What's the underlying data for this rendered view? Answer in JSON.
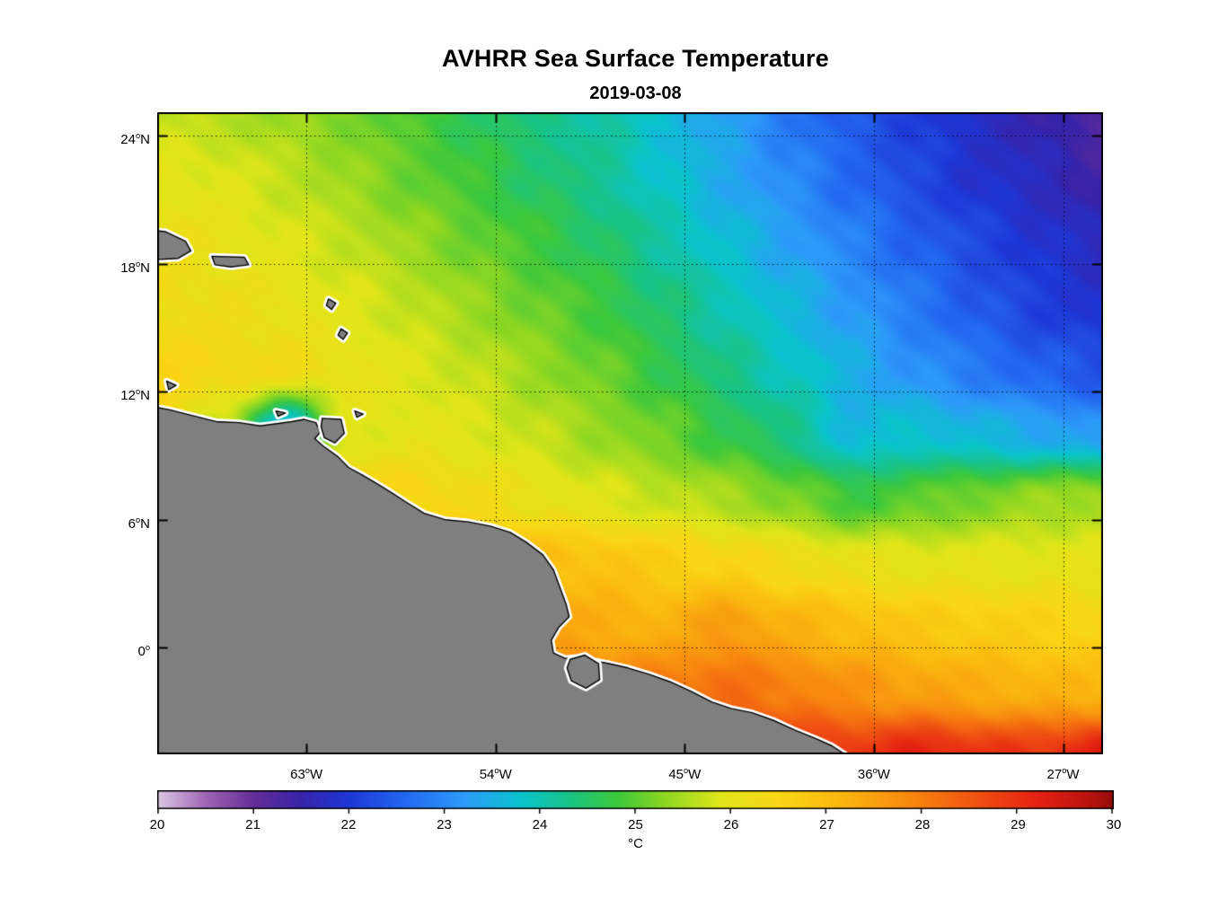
{
  "title": "AVHRR Sea Surface Temperature",
  "subtitle": "2019-03-08",
  "colorbar": {
    "unit_label": "°C",
    "min": 20,
    "max": 30,
    "tick_labels": [
      "20",
      "21",
      "22",
      "23",
      "24",
      "25",
      "26",
      "27",
      "28",
      "29",
      "30"
    ]
  },
  "axes": {
    "degree_superscript": "o",
    "lat_tick_labels": [
      {
        "deg": "24",
        "hem": "N",
        "value": 24
      },
      {
        "deg": "18",
        "hem": "N",
        "value": 18
      },
      {
        "deg": "12",
        "hem": "N",
        "value": 12
      },
      {
        "deg": "6",
        "hem": "N",
        "value": 6
      },
      {
        "deg": "0",
        "hem": "",
        "value": 0
      }
    ],
    "lon_tick_labels": [
      {
        "deg": "63",
        "hem": "W",
        "value": -63
      },
      {
        "deg": "54",
        "hem": "W",
        "value": -54
      },
      {
        "deg": "45",
        "hem": "W",
        "value": -45
      },
      {
        "deg": "36",
        "hem": "W",
        "value": -36
      },
      {
        "deg": "27",
        "hem": "W",
        "value": -27
      }
    ]
  },
  "chart_data": {
    "type": "heatmap",
    "title": "AVHRR Sea Surface Temperature",
    "date": "2019-03-08",
    "units": "°C",
    "value_range": [
      20,
      30
    ],
    "lon_range": [
      -70.1,
      -25.1
    ],
    "lat_range": [
      -5.0,
      25.1
    ],
    "grid_on": true,
    "grid_lines": {
      "lats": [
        24,
        18,
        12,
        6,
        0
      ],
      "lons": [
        -63,
        -54,
        -45,
        -36,
        -27
      ],
      "style": "dotted"
    },
    "grid_lons": [
      -70,
      -67,
      -64,
      -61,
      -58,
      -55,
      -52,
      -49,
      -46,
      -43,
      -40,
      -37,
      -34,
      -31,
      -28,
      -25
    ],
    "grid_lats": [
      25,
      22,
      19,
      16,
      13,
      10,
      7,
      4,
      1,
      -2,
      -5
    ],
    "sst": [
      [
        25.7,
        25.6,
        25.4,
        25.2,
        24.9,
        24.6,
        24.3,
        24.1,
        23.7,
        23.3,
        22.8,
        22.4,
        22.1,
        21.8,
        21.5,
        21.2
      ],
      [
        26.0,
        25.9,
        25.7,
        25.4,
        25.1,
        24.8,
        24.5,
        24.2,
        23.8,
        23.4,
        23.0,
        22.6,
        22.2,
        21.9,
        21.7,
        21.4
      ],
      [
        26.2,
        26.1,
        25.9,
        25.7,
        25.4,
        25.1,
        24.8,
        24.5,
        24.1,
        23.7,
        23.3,
        22.9,
        22.5,
        22.2,
        21.9,
        21.7
      ],
      [
        26.3,
        26.2,
        26.1,
        25.9,
        25.7,
        25.4,
        25.1,
        24.8,
        24.4,
        24.0,
        23.6,
        23.2,
        22.8,
        22.4,
        22.1,
        21.9
      ],
      [
        26.5,
        26.4,
        26.3,
        26.1,
        25.9,
        25.7,
        25.4,
        25.1,
        24.7,
        24.3,
        23.9,
        23.5,
        23.1,
        22.8,
        22.5,
        22.3
      ],
      [
        26.5,
        25.6,
        23.3,
        25.9,
        26.0,
        25.9,
        25.7,
        25.4,
        25.1,
        24.7,
        24.3,
        23.6,
        23.8,
        23.6,
        23.4,
        23.2
      ],
      [
        26.8,
        26.8,
        26.8,
        26.7,
        26.5,
        26.3,
        26.1,
        25.9,
        25.7,
        25.5,
        25.2,
        24.8,
        25.0,
        25.2,
        25.4,
        25.5
      ],
      [
        27.2,
        27.2,
        27.2,
        27.2,
        27.1,
        27.0,
        27.0,
        26.9,
        26.7,
        26.5,
        26.3,
        26.1,
        26.0,
        26.0,
        26.0,
        26.0
      ],
      [
        27.5,
        27.5,
        27.5,
        27.5,
        27.5,
        27.4,
        27.4,
        27.3,
        27.2,
        27.6,
        27.2,
        27.0,
        26.8,
        26.7,
        26.6,
        26.5
      ],
      [
        28.0,
        28.0,
        28.0,
        28.0,
        28.0,
        28.0,
        28.0,
        28.0,
        28.1,
        28.2,
        28.0,
        27.7,
        27.5,
        27.3,
        27.2,
        27.1
      ],
      [
        29.0,
        29.0,
        29.0,
        29.0,
        29.0,
        29.0,
        29.0,
        29.0,
        29.0,
        29.0,
        29.0,
        28.9,
        29.2,
        29.0,
        28.9,
        29.4
      ]
    ],
    "land_color": "#7f7f7f",
    "coast_halo_color": "#ffffff",
    "coast_line_color": "#000000",
    "colormap_stops": [
      [
        20.0,
        [
          218,
          198,
          228
        ]
      ],
      [
        20.5,
        [
          160,
          100,
          180
        ]
      ],
      [
        21.0,
        [
          100,
          45,
          150
        ]
      ],
      [
        21.5,
        [
          55,
          35,
          170
        ]
      ],
      [
        22.0,
        [
          30,
          55,
          215
        ]
      ],
      [
        22.6,
        [
          35,
          105,
          240
        ]
      ],
      [
        23.2,
        [
          45,
          155,
          250
        ]
      ],
      [
        23.8,
        [
          10,
          195,
          205
        ]
      ],
      [
        24.3,
        [
          25,
          195,
          135
        ]
      ],
      [
        24.8,
        [
          60,
          200,
          60
        ]
      ],
      [
        25.3,
        [
          140,
          215,
          35
        ]
      ],
      [
        25.9,
        [
          225,
          230,
          25
        ]
      ],
      [
        26.5,
        [
          250,
          215,
          20
        ]
      ],
      [
        27.2,
        [
          250,
          180,
          15
        ]
      ],
      [
        27.9,
        [
          248,
          135,
          15
        ]
      ],
      [
        28.6,
        [
          240,
          80,
          18
        ]
      ],
      [
        29.2,
        [
          228,
          35,
          18
        ]
      ],
      [
        29.7,
        [
          190,
          20,
          14
        ]
      ],
      [
        30.0,
        [
          150,
          12,
          10
        ]
      ]
    ],
    "land_polygons": {
      "south_america": [
        [
          -70.6,
          11.35
        ],
        [
          -69.5,
          11.15
        ],
        [
          -68.5,
          10.9
        ],
        [
          -67.3,
          10.6
        ],
        [
          -66.2,
          10.55
        ],
        [
          -65.2,
          10.4
        ],
        [
          -64.4,
          10.5
        ],
        [
          -63.7,
          10.6
        ],
        [
          -63.1,
          10.7
        ],
        [
          -62.55,
          10.55
        ],
        [
          -62.35,
          10.1
        ],
        [
          -62.6,
          9.8
        ],
        [
          -62.2,
          9.45
        ],
        [
          -61.5,
          8.95
        ],
        [
          -61.0,
          8.45
        ],
        [
          -60.35,
          8.1
        ],
        [
          -59.75,
          7.75
        ],
        [
          -59.0,
          7.3
        ],
        [
          -58.3,
          6.85
        ],
        [
          -57.4,
          6.3
        ],
        [
          -56.4,
          6.0
        ],
        [
          -55.3,
          5.9
        ],
        [
          -54.25,
          5.7
        ],
        [
          -53.3,
          5.4
        ],
        [
          -52.55,
          4.95
        ],
        [
          -51.75,
          4.35
        ],
        [
          -51.25,
          3.65
        ],
        [
          -50.95,
          2.85
        ],
        [
          -50.65,
          2.05
        ],
        [
          -50.5,
          1.45
        ],
        [
          -51.0,
          0.95
        ],
        [
          -51.35,
          0.35
        ],
        [
          -51.25,
          -0.25
        ],
        [
          -50.7,
          -0.5
        ],
        [
          -50.0,
          -0.45
        ],
        [
          -49.4,
          -0.6
        ],
        [
          -48.6,
          -0.75
        ],
        [
          -47.7,
          -0.95
        ],
        [
          -46.7,
          -1.25
        ],
        [
          -45.7,
          -1.6
        ],
        [
          -44.7,
          -2.05
        ],
        [
          -43.7,
          -2.55
        ],
        [
          -42.8,
          -2.85
        ],
        [
          -41.8,
          -3.05
        ],
        [
          -40.8,
          -3.4
        ],
        [
          -39.8,
          -3.85
        ],
        [
          -38.8,
          -4.25
        ],
        [
          -38.0,
          -4.6
        ],
        [
          -37.3,
          -5.05
        ],
        [
          -36.9,
          -6.0
        ],
        [
          -72.0,
          -6.0
        ],
        [
          -72.0,
          11.2
        ]
      ],
      "marajo_island": [
        [
          -50.45,
          -0.55
        ],
        [
          -49.75,
          -0.35
        ],
        [
          -49.1,
          -0.75
        ],
        [
          -49.05,
          -1.5
        ],
        [
          -49.7,
          -1.9
        ],
        [
          -50.4,
          -1.55
        ],
        [
          -50.6,
          -0.95
        ]
      ],
      "hispaniola": [
        [
          -70.6,
          19.6
        ],
        [
          -69.7,
          19.5
        ],
        [
          -68.75,
          19.05
        ],
        [
          -68.5,
          18.6
        ],
        [
          -69.1,
          18.25
        ],
        [
          -70.0,
          18.2
        ],
        [
          -70.6,
          18.4
        ]
      ],
      "puerto_rico": [
        [
          -67.5,
          18.35
        ],
        [
          -65.95,
          18.3
        ],
        [
          -65.75,
          17.95
        ],
        [
          -66.6,
          17.85
        ],
        [
          -67.35,
          17.95
        ]
      ],
      "guadeloupe": [
        [
          -61.95,
          16.35
        ],
        [
          -61.6,
          16.15
        ],
        [
          -61.8,
          15.85
        ],
        [
          -62.05,
          16.05
        ]
      ],
      "martinique": [
        [
          -61.35,
          14.95
        ],
        [
          -61.05,
          14.75
        ],
        [
          -61.25,
          14.45
        ],
        [
          -61.5,
          14.65
        ]
      ],
      "curacao": [
        [
          -69.65,
          12.5
        ],
        [
          -69.2,
          12.3
        ],
        [
          -69.55,
          12.1
        ]
      ],
      "margarita": [
        [
          -64.45,
          11.1
        ],
        [
          -64.0,
          11.0
        ],
        [
          -64.35,
          10.85
        ]
      ],
      "trinidad": [
        [
          -62.25,
          10.75
        ],
        [
          -61.35,
          10.7
        ],
        [
          -61.2,
          10.05
        ],
        [
          -61.65,
          9.6
        ],
        [
          -62.15,
          9.85
        ],
        [
          -62.3,
          10.35
        ]
      ],
      "tobago": [
        [
          -60.7,
          11.1
        ],
        [
          -60.3,
          10.95
        ],
        [
          -60.6,
          10.8
        ]
      ]
    }
  }
}
